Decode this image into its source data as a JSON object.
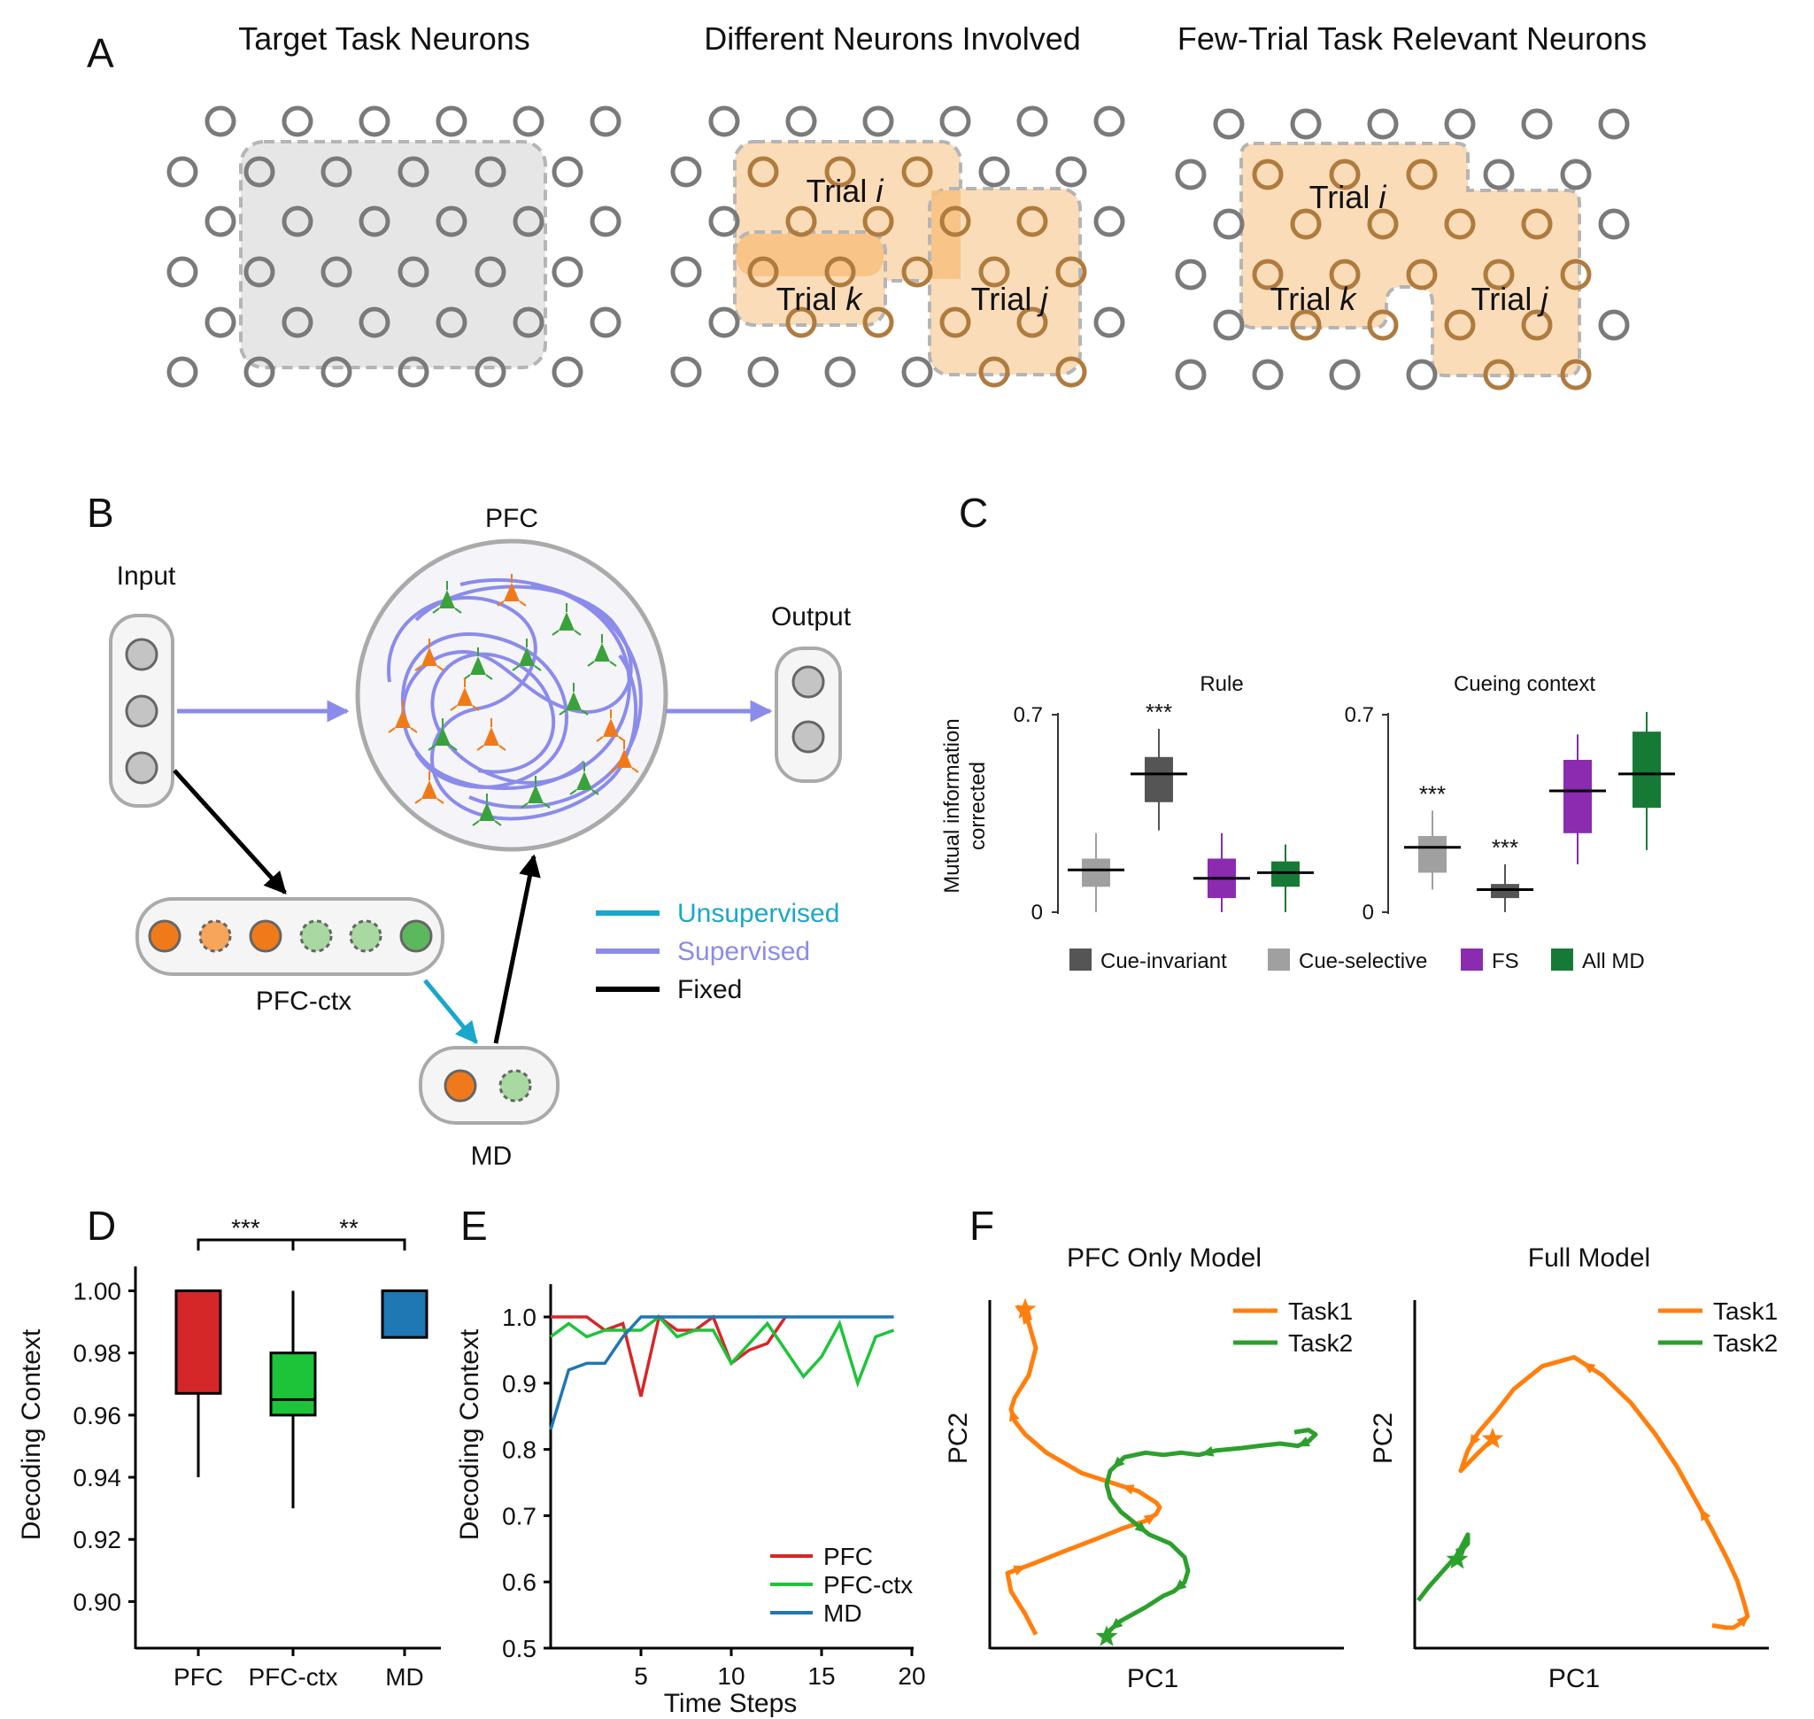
{
  "panelA": {
    "letter": "A",
    "titles": [
      "Target Task Neurons",
      "Different Neurons Involved",
      "Few-Trial Task Relevant Neurons"
    ],
    "trial_labels": {
      "mid": [
        {
          "pre": "Trial ",
          "var": "i"
        },
        {
          "pre": "Trial ",
          "var": "k"
        },
        {
          "pre": "Trial ",
          "var": "j"
        }
      ],
      "right": [
        {
          "pre": "Trial ",
          "var": "i"
        },
        {
          "pre": "Trial ",
          "var": "k"
        },
        {
          "pre": "Trial ",
          "var": "j"
        }
      ]
    },
    "colors": {
      "neuron": "#7a7a7a",
      "target_region": "#e6e6e6",
      "trial_region": "#fbdcb8"
    }
  },
  "panelB": {
    "letter": "B",
    "input": "Input",
    "pfc": "PFC",
    "output": "Output",
    "pfc_ctx": "PFC-ctx",
    "md": "MD",
    "legend": [
      "Unsupervised",
      "Supervised",
      "Fixed"
    ],
    "colors": {
      "unsupervised": "#1aa7cc",
      "supervised": "#8b8bec",
      "fixed": "#000000",
      "orange_neuron": "#f07a1a",
      "green_neuron": "#3aa23a"
    }
  },
  "panelC": {
    "letter": "C",
    "ylabel": [
      "Mutual information",
      "corrected"
    ],
    "legend": [
      "Cue-invariant",
      "Cue-selective",
      "FS",
      "All MD"
    ],
    "legend_colors": [
      "#555555",
      "#a0a0a0",
      "#8a2bb0",
      "#167a36"
    ],
    "chart_data": [
      {
        "type": "box",
        "title": "Rule",
        "ylim": [
          0,
          0.7
        ],
        "yticks": [
          "0",
          "0.7"
        ],
        "groups": [
          {
            "name": "Cue-selective",
            "whisker": [
              0.0,
              0.28
            ],
            "q1": 0.09,
            "median": 0.15,
            "q3": 0.19,
            "color": "#a0a0a0",
            "annotation": ""
          },
          {
            "name": "Cue-invariant",
            "whisker": [
              0.29,
              0.65
            ],
            "q1": 0.39,
            "median": 0.49,
            "q3": 0.55,
            "color": "#555555",
            "annotation": "***"
          },
          {
            "name": "FS",
            "whisker": [
              0.0,
              0.28
            ],
            "q1": 0.05,
            "median": 0.12,
            "q3": 0.19,
            "color": "#8a2bb0",
            "annotation": ""
          },
          {
            "name": "All MD",
            "whisker": [
              0.0,
              0.24
            ],
            "q1": 0.09,
            "median": 0.14,
            "q3": 0.18,
            "color": "#167a36",
            "annotation": ""
          }
        ]
      },
      {
        "type": "box",
        "title": "Cueing context",
        "ylim": [
          0,
          0.7
        ],
        "yticks": [
          "0",
          "0.7"
        ],
        "groups": [
          {
            "name": "Cue-selective",
            "whisker": [
              0.08,
              0.36
            ],
            "q1": 0.14,
            "median": 0.23,
            "q3": 0.27,
            "color": "#a0a0a0",
            "annotation": "***"
          },
          {
            "name": "Cue-invariant",
            "whisker": [
              0.0,
              0.17
            ],
            "q1": 0.05,
            "median": 0.08,
            "q3": 0.1,
            "color": "#555555",
            "annotation": "***"
          },
          {
            "name": "FS",
            "whisker": [
              0.17,
              0.63
            ],
            "q1": 0.28,
            "median": 0.43,
            "q3": 0.54,
            "color": "#8a2bb0",
            "annotation": ""
          },
          {
            "name": "All MD",
            "whisker": [
              0.22,
              0.71
            ],
            "q1": 0.37,
            "median": 0.49,
            "q3": 0.64,
            "color": "#167a36",
            "annotation": ""
          }
        ]
      }
    ]
  },
  "panelD": {
    "letter": "D",
    "chart_data": {
      "type": "box",
      "ylabel": "Decoding Context",
      "ylim": [
        0.885,
        1.005
      ],
      "yticks": [
        "0.90",
        "0.92",
        "0.94",
        "0.96",
        "0.98",
        "1.00"
      ],
      "categories": [
        "PFC",
        "PFC-ctx",
        "MD"
      ],
      "groups": [
        {
          "name": "PFC",
          "whisker": [
            0.94,
            1.0
          ],
          "q1": 0.967,
          "median": 1.0,
          "q3": 1.0,
          "color": "#d62728"
        },
        {
          "name": "PFC-ctx",
          "whisker": [
            0.93,
            1.0
          ],
          "q1": 0.96,
          "median": 0.965,
          "q3": 0.98,
          "color": "#1dc43a"
        },
        {
          "name": "MD",
          "whisker": [
            0.985,
            1.0
          ],
          "q1": 0.985,
          "median": 1.0,
          "q3": 1.0,
          "color": "#1f77b4"
        }
      ],
      "significance": [
        {
          "from": "PFC",
          "to": "PFC-ctx",
          "label": "***"
        },
        {
          "from": "PFC-ctx",
          "to": "MD",
          "label": "**"
        }
      ]
    }
  },
  "panelE": {
    "letter": "E",
    "chart_data": {
      "type": "line",
      "xlabel": "Time Steps",
      "ylabel": "Decoding Context",
      "xlim": [
        0,
        20
      ],
      "ylim": [
        0.5,
        1.0
      ],
      "xticks": [
        "5",
        "10",
        "15",
        "20"
      ],
      "yticks": [
        "0.5",
        "0.6",
        "0.7",
        "0.8",
        "0.9",
        "1.0"
      ],
      "x": [
        0,
        1,
        2,
        3,
        4,
        5,
        6,
        7,
        8,
        9,
        10,
        11,
        12,
        13,
        14,
        15,
        16,
        17,
        18,
        19
      ],
      "series": [
        {
          "name": "PFC",
          "color": "#d62728",
          "values": [
            1.0,
            1.0,
            1.0,
            0.98,
            0.99,
            0.88,
            1.0,
            0.98,
            0.98,
            1.0,
            0.93,
            0.95,
            0.96,
            1.0,
            null,
            null,
            null,
            null,
            null,
            null
          ]
        },
        {
          "name": "PFC-ctx",
          "color": "#1dc43a",
          "values": [
            0.97,
            0.99,
            0.97,
            0.98,
            0.98,
            0.98,
            1.0,
            0.97,
            0.98,
            0.98,
            0.93,
            0.96,
            0.99,
            0.95,
            0.91,
            0.94,
            0.99,
            0.9,
            0.97,
            0.98
          ]
        },
        {
          "name": "MD",
          "color": "#1f77b4",
          "values": [
            0.83,
            0.92,
            0.93,
            0.93,
            0.97,
            1.0,
            1.0,
            1.0,
            1.0,
            1.0,
            1.0,
            1.0,
            1.0,
            1.0,
            1.0,
            1.0,
            1.0,
            1.0,
            1.0,
            1.0
          ]
        }
      ]
    }
  },
  "panelF": {
    "letter": "F",
    "chart_data": [
      {
        "type": "line",
        "title": "PFC Only Model",
        "xlabel": "PC1",
        "ylabel": "PC2",
        "series": [
          {
            "name": "Task1",
            "color": "#ff7f0e",
            "x": [
              0.13,
              0.1,
              0.06,
              0.05,
              0.12,
              0.2,
              0.3,
              0.38,
              0.44,
              0.47,
              0.48,
              0.47,
              0.45,
              0.42,
              0.36,
              0.26,
              0.16,
              0.1,
              0.07,
              0.06,
              0.07,
              0.11,
              0.13,
              0.11,
              0.09,
              0.08,
              0.1
            ],
            "y": [
              0.06,
              0.15,
              0.25,
              0.33,
              0.37,
              0.42,
              0.48,
              0.53,
              0.56,
              0.59,
              0.62,
              0.64,
              0.66,
              0.69,
              0.72,
              0.77,
              0.86,
              0.94,
              1.0,
              1.05,
              1.1,
              1.2,
              1.32,
              1.43,
              1.48,
              1.5,
              1.49
            ]
          },
          {
            "name": "Task2",
            "color": "#2ca02c",
            "x": [
              0.86,
              0.9,
              0.92,
              0.9,
              0.87,
              0.82,
              0.76,
              0.71,
              0.64,
              0.59,
              0.54,
              0.49,
              0.44,
              0.38,
              0.34,
              0.33,
              0.34,
              0.37,
              0.41,
              0.45,
              0.51,
              0.55,
              0.56,
              0.55,
              0.52,
              0.49,
              0.46,
              0.44,
              0.37,
              0.34,
              0.33
            ],
            "y": [
              0.95,
              0.96,
              0.94,
              0.91,
              0.89,
              0.9,
              0.89,
              0.88,
              0.87,
              0.85,
              0.86,
              0.85,
              0.86,
              0.84,
              0.78,
              0.72,
              0.66,
              0.6,
              0.55,
              0.5,
              0.46,
              0.4,
              0.34,
              0.29,
              0.25,
              0.23,
              0.2,
              0.18,
              0.12,
              0.08,
              0.05
            ]
          }
        ]
      },
      {
        "type": "line",
        "title": "Full Model",
        "xlabel": "PC1",
        "ylabel": "PC2",
        "series": [
          {
            "name": "Task1",
            "color": "#ff7f0e",
            "x": [
              0.84,
              0.88,
              0.9,
              0.92,
              0.94,
              0.93,
              0.91,
              0.88,
              0.84,
              0.79,
              0.74,
              0.68,
              0.61,
              0.53,
              0.45,
              0.36,
              0.28,
              0.23,
              0.18,
              0.15,
              0.13,
              0.18,
              0.22
            ],
            "y": [
              0.1,
              0.09,
              0.09,
              0.11,
              0.14,
              0.2,
              0.3,
              0.4,
              0.52,
              0.66,
              0.8,
              0.94,
              1.08,
              1.2,
              1.28,
              1.24,
              1.14,
              1.04,
              0.95,
              0.87,
              0.78,
              0.86,
              0.92
            ]
          },
          {
            "name": "Task2",
            "color": "#2ca02c",
            "x": [
              0.01,
              0.04,
              0.08,
              0.12,
              0.15,
              0.15,
              0.13,
              0.12
            ],
            "y": [
              0.21,
              0.27,
              0.34,
              0.41,
              0.46,
              0.5,
              0.44,
              0.39
            ]
          }
        ]
      }
    ]
  }
}
